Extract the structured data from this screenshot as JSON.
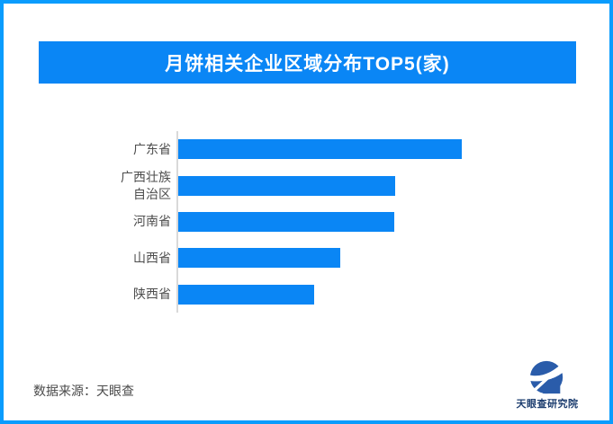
{
  "frame": {
    "border_color": "#0a9cfd",
    "background": "#ffffff"
  },
  "title_banner": {
    "text": "月饼相关企业区域分布TOP5(家)",
    "background": "#0a86f5",
    "text_color": "#ffffff"
  },
  "chart_data": {
    "type": "bar",
    "orientation": "horizontal",
    "title": "月饼相关企业区域分布TOP5(家)",
    "categories": [
      "广东省",
      "广西壮族自治区",
      "河南省",
      "山西省",
      "陕西省"
    ],
    "values_pct_of_max": [
      100,
      76.5,
      76.2,
      57.1,
      47.9
    ],
    "value_labels_shown": false,
    "numeric_axis_shown": false,
    "bar_color": "#0a86f5",
    "axis_line_color": "#d9d9d9",
    "label_color": "#4d4d4d",
    "grid": false,
    "legend": false
  },
  "footer": {
    "source_text": "数据来源：天眼查"
  },
  "logo": {
    "wordmark": "天眼查研究院",
    "icon_color": "#2a5caa",
    "text_color": "#1b3c6e"
  }
}
